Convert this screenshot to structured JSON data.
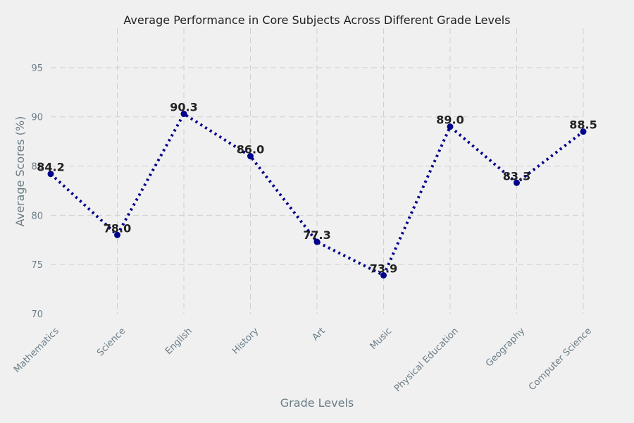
{
  "chart_data": {
    "type": "line",
    "title": "Average Performance in Core Subjects Across Different Grade Levels",
    "xlabel": "Grade Levels",
    "ylabel": "Average Scores (%)",
    "categories": [
      "Mathematics",
      "Science",
      "English",
      "History",
      "Art",
      "Music",
      "Physical Education",
      "Geography",
      "Computer Science"
    ],
    "series": [
      {
        "values": [
          84.2,
          78.0,
          90.3,
          86.0,
          77.3,
          73.9,
          89.0,
          83.3,
          88.5
        ]
      }
    ],
    "data_labels": [
      "84.2",
      "78.0",
      "90.3",
      "86.0",
      "77.3",
      "73.9",
      "89.0",
      "83.3",
      "88.5"
    ],
    "yticks": [
      70,
      75,
      80,
      85,
      90,
      95
    ],
    "ylim": [
      70,
      99
    ],
    "grid": true,
    "line_style": "dotted",
    "marker": "circle",
    "line_color": "#00008b",
    "background": "#f0f0f0"
  }
}
